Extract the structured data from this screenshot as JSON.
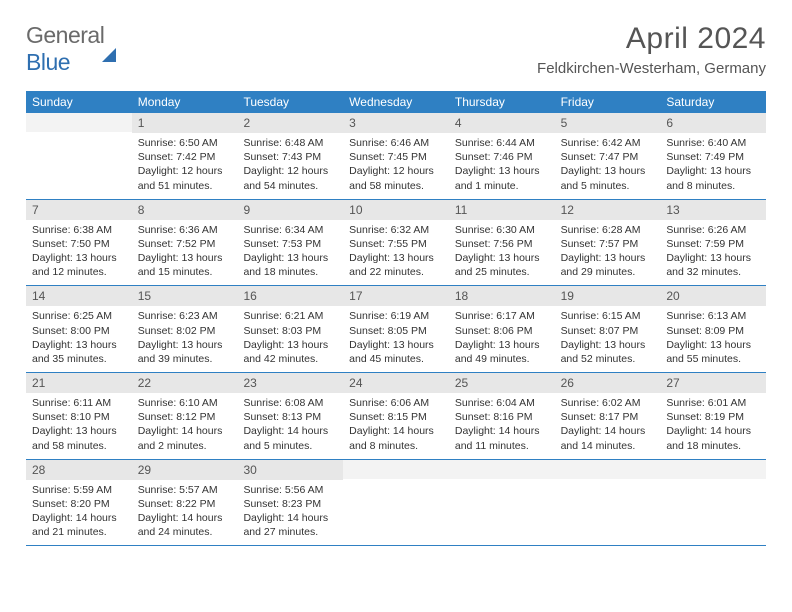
{
  "logo": {
    "text1": "General",
    "text2": "Blue"
  },
  "title": "April 2024",
  "location": "Feldkirchen-Westerham, Germany",
  "colors": {
    "header_bg": "#2f80c3",
    "header_fg": "#ffffff",
    "daybar_bg": "#e7e7e7",
    "daybar_fg": "#555555",
    "body_fg": "#333333",
    "rule": "#2f80c3",
    "logo_gray": "#6a6a6a",
    "logo_blue": "#2f6fb0"
  },
  "typography": {
    "title_fontsize": 30,
    "location_fontsize": 15,
    "weekday_fontsize": 12,
    "daynum_fontsize": 12,
    "cell_fontsize": 10.5
  },
  "weekdays": [
    "Sunday",
    "Monday",
    "Tuesday",
    "Wednesday",
    "Thursday",
    "Friday",
    "Saturday"
  ],
  "weeks": [
    [
      {
        "empty": true
      },
      {
        "n": "1",
        "sr": "Sunrise: 6:50 AM",
        "ss": "Sunset: 7:42 PM",
        "dl": "Daylight: 12 hours and 51 minutes."
      },
      {
        "n": "2",
        "sr": "Sunrise: 6:48 AM",
        "ss": "Sunset: 7:43 PM",
        "dl": "Daylight: 12 hours and 54 minutes."
      },
      {
        "n": "3",
        "sr": "Sunrise: 6:46 AM",
        "ss": "Sunset: 7:45 PM",
        "dl": "Daylight: 12 hours and 58 minutes."
      },
      {
        "n": "4",
        "sr": "Sunrise: 6:44 AM",
        "ss": "Sunset: 7:46 PM",
        "dl": "Daylight: 13 hours and 1 minute."
      },
      {
        "n": "5",
        "sr": "Sunrise: 6:42 AM",
        "ss": "Sunset: 7:47 PM",
        "dl": "Daylight: 13 hours and 5 minutes."
      },
      {
        "n": "6",
        "sr": "Sunrise: 6:40 AM",
        "ss": "Sunset: 7:49 PM",
        "dl": "Daylight: 13 hours and 8 minutes."
      }
    ],
    [
      {
        "n": "7",
        "sr": "Sunrise: 6:38 AM",
        "ss": "Sunset: 7:50 PM",
        "dl": "Daylight: 13 hours and 12 minutes."
      },
      {
        "n": "8",
        "sr": "Sunrise: 6:36 AM",
        "ss": "Sunset: 7:52 PM",
        "dl": "Daylight: 13 hours and 15 minutes."
      },
      {
        "n": "9",
        "sr": "Sunrise: 6:34 AM",
        "ss": "Sunset: 7:53 PM",
        "dl": "Daylight: 13 hours and 18 minutes."
      },
      {
        "n": "10",
        "sr": "Sunrise: 6:32 AM",
        "ss": "Sunset: 7:55 PM",
        "dl": "Daylight: 13 hours and 22 minutes."
      },
      {
        "n": "11",
        "sr": "Sunrise: 6:30 AM",
        "ss": "Sunset: 7:56 PM",
        "dl": "Daylight: 13 hours and 25 minutes."
      },
      {
        "n": "12",
        "sr": "Sunrise: 6:28 AM",
        "ss": "Sunset: 7:57 PM",
        "dl": "Daylight: 13 hours and 29 minutes."
      },
      {
        "n": "13",
        "sr": "Sunrise: 6:26 AM",
        "ss": "Sunset: 7:59 PM",
        "dl": "Daylight: 13 hours and 32 minutes."
      }
    ],
    [
      {
        "n": "14",
        "sr": "Sunrise: 6:25 AM",
        "ss": "Sunset: 8:00 PM",
        "dl": "Daylight: 13 hours and 35 minutes."
      },
      {
        "n": "15",
        "sr": "Sunrise: 6:23 AM",
        "ss": "Sunset: 8:02 PM",
        "dl": "Daylight: 13 hours and 39 minutes."
      },
      {
        "n": "16",
        "sr": "Sunrise: 6:21 AM",
        "ss": "Sunset: 8:03 PM",
        "dl": "Daylight: 13 hours and 42 minutes."
      },
      {
        "n": "17",
        "sr": "Sunrise: 6:19 AM",
        "ss": "Sunset: 8:05 PM",
        "dl": "Daylight: 13 hours and 45 minutes."
      },
      {
        "n": "18",
        "sr": "Sunrise: 6:17 AM",
        "ss": "Sunset: 8:06 PM",
        "dl": "Daylight: 13 hours and 49 minutes."
      },
      {
        "n": "19",
        "sr": "Sunrise: 6:15 AM",
        "ss": "Sunset: 8:07 PM",
        "dl": "Daylight: 13 hours and 52 minutes."
      },
      {
        "n": "20",
        "sr": "Sunrise: 6:13 AM",
        "ss": "Sunset: 8:09 PM",
        "dl": "Daylight: 13 hours and 55 minutes."
      }
    ],
    [
      {
        "n": "21",
        "sr": "Sunrise: 6:11 AM",
        "ss": "Sunset: 8:10 PM",
        "dl": "Daylight: 13 hours and 58 minutes."
      },
      {
        "n": "22",
        "sr": "Sunrise: 6:10 AM",
        "ss": "Sunset: 8:12 PM",
        "dl": "Daylight: 14 hours and 2 minutes."
      },
      {
        "n": "23",
        "sr": "Sunrise: 6:08 AM",
        "ss": "Sunset: 8:13 PM",
        "dl": "Daylight: 14 hours and 5 minutes."
      },
      {
        "n": "24",
        "sr": "Sunrise: 6:06 AM",
        "ss": "Sunset: 8:15 PM",
        "dl": "Daylight: 14 hours and 8 minutes."
      },
      {
        "n": "25",
        "sr": "Sunrise: 6:04 AM",
        "ss": "Sunset: 8:16 PM",
        "dl": "Daylight: 14 hours and 11 minutes."
      },
      {
        "n": "26",
        "sr": "Sunrise: 6:02 AM",
        "ss": "Sunset: 8:17 PM",
        "dl": "Daylight: 14 hours and 14 minutes."
      },
      {
        "n": "27",
        "sr": "Sunrise: 6:01 AM",
        "ss": "Sunset: 8:19 PM",
        "dl": "Daylight: 14 hours and 18 minutes."
      }
    ],
    [
      {
        "n": "28",
        "sr": "Sunrise: 5:59 AM",
        "ss": "Sunset: 8:20 PM",
        "dl": "Daylight: 14 hours and 21 minutes."
      },
      {
        "n": "29",
        "sr": "Sunrise: 5:57 AM",
        "ss": "Sunset: 8:22 PM",
        "dl": "Daylight: 14 hours and 24 minutes."
      },
      {
        "n": "30",
        "sr": "Sunrise: 5:56 AM",
        "ss": "Sunset: 8:23 PM",
        "dl": "Daylight: 14 hours and 27 minutes."
      },
      {
        "empty": true
      },
      {
        "empty": true
      },
      {
        "empty": true
      },
      {
        "empty": true
      }
    ]
  ]
}
